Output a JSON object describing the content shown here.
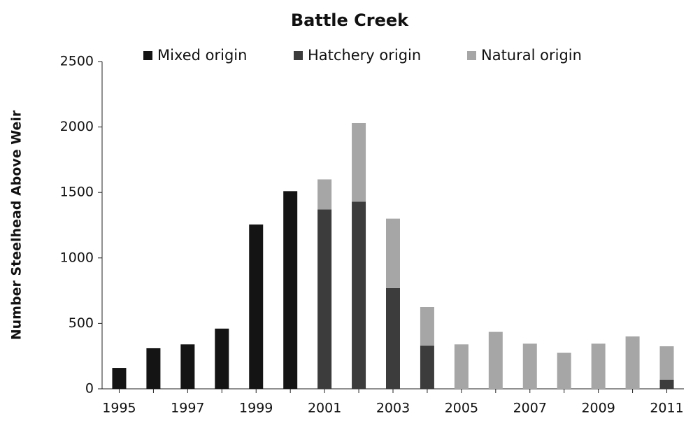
{
  "chart_data": {
    "type": "stacked_bar",
    "title": "Battle Creek",
    "ylabel": "Number Steelhead  Above Weir",
    "categories": [
      "1995",
      null,
      "1997",
      null,
      "1999",
      null,
      "2001",
      null,
      "2003",
      null,
      "2005",
      null,
      "2007",
      null,
      "2009",
      null,
      "2011"
    ],
    "series": [
      {
        "name": "Mixed origin",
        "color": "#141414",
        "values": [
          160,
          310,
          340,
          460,
          1255,
          1510,
          null,
          null,
          null,
          null,
          null,
          null,
          null,
          null,
          null,
          null,
          null
        ]
      },
      {
        "name": "Hatchery origin",
        "color": "#3c3c3c",
        "values": [
          null,
          null,
          null,
          null,
          null,
          null,
          1370,
          1430,
          770,
          330,
          null,
          null,
          null,
          null,
          null,
          null,
          70
        ]
      },
      {
        "name": "Natural origin",
        "color": "#a6a6a6",
        "values": [
          null,
          null,
          null,
          null,
          null,
          null,
          230,
          600,
          530,
          295,
          340,
          435,
          345,
          275,
          345,
          400,
          255
        ]
      }
    ],
    "ylim": [
      0,
      2500
    ],
    "yticks": [
      0,
      500,
      1000,
      1500,
      2000,
      2500
    ],
    "legend": "top"
  }
}
